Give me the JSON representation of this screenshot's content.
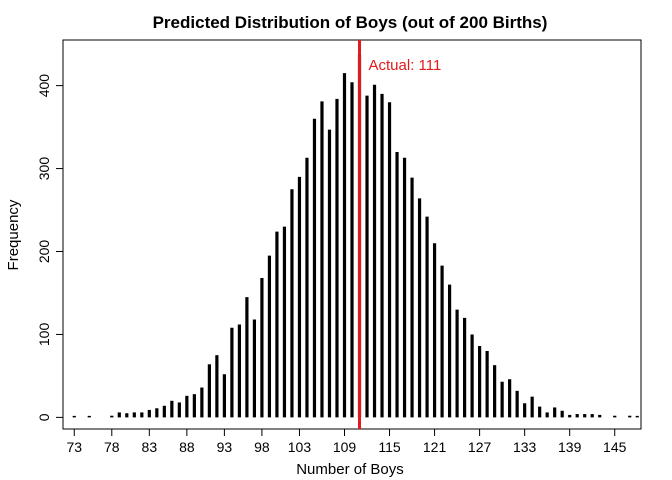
{
  "chart_data": {
    "type": "bar",
    "title": "Predicted Distribution of Boys (out of 200 Births)",
    "xlabel": "Number of Boys",
    "ylabel": "Frequency",
    "xlim": [
      71.5,
      148.5
    ],
    "ylim": [
      -14,
      455
    ],
    "x_ticks": [
      73,
      78,
      83,
      88,
      93,
      98,
      103,
      109,
      115,
      121,
      127,
      133,
      139,
      145
    ],
    "y_ticks": [
      0,
      100,
      200,
      300,
      400
    ],
    "grid": false,
    "colors": {
      "bars": "#000000",
      "reference": "#e31a1c",
      "axis": "#000000"
    },
    "x": [
      73,
      75,
      78,
      79,
      80,
      81,
      82,
      83,
      84,
      85,
      86,
      87,
      88,
      89,
      90,
      91,
      92,
      93,
      94,
      95,
      96,
      97,
      98,
      99,
      100,
      101,
      102,
      103,
      104,
      105,
      106,
      107,
      108,
      109,
      110,
      111,
      112,
      113,
      114,
      115,
      116,
      117,
      118,
      119,
      120,
      121,
      122,
      123,
      124,
      125,
      126,
      127,
      128,
      129,
      130,
      131,
      132,
      133,
      134,
      135,
      136,
      137,
      138,
      139,
      140,
      141,
      142,
      143,
      145,
      147,
      148
    ],
    "values": [
      1,
      1,
      2,
      6,
      5,
      6,
      6,
      9,
      11,
      14,
      20,
      18,
      26,
      28,
      36,
      64,
      75,
      52,
      108,
      112,
      145,
      118,
      168,
      195,
      224,
      230,
      275,
      290,
      313,
      360,
      381,
      347,
      384,
      415,
      404,
      437,
      388,
      401,
      390,
      380,
      320,
      313,
      289,
      264,
      242,
      210,
      183,
      160,
      130,
      120,
      100,
      86,
      80,
      63,
      43,
      46,
      32,
      17,
      25,
      13,
      6,
      12,
      8,
      3,
      4,
      4,
      4,
      3,
      2,
      2,
      1
    ],
    "reference_line": {
      "x": 111,
      "label": "Actual: 111"
    }
  }
}
